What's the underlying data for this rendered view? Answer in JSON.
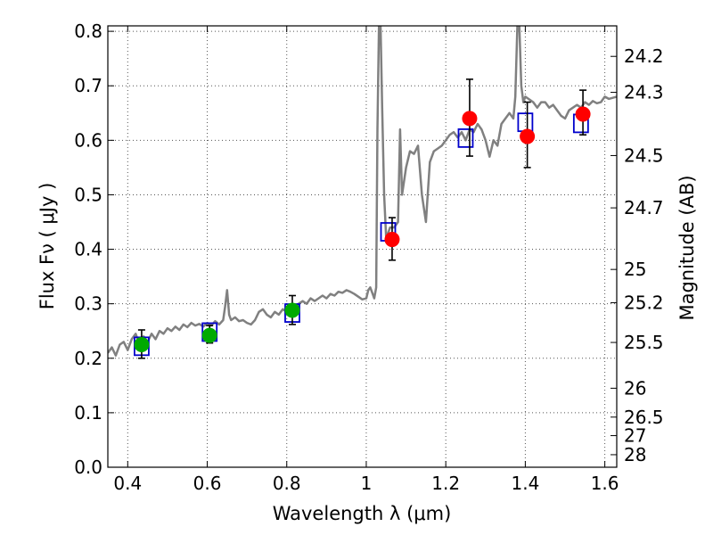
{
  "chart_data": {
    "type": "scatter",
    "xlabel": "Wavelength  λ (μm)",
    "ylabel": "Flux  Fν  ( μJy )",
    "ylabel_right": "Magnitude (AB)",
    "xlim": [
      0.35,
      1.63
    ],
    "ylim": [
      0.0,
      0.81
    ],
    "grid": true,
    "x_ticks": [
      0.4,
      0.6,
      0.8,
      1.0,
      1.2,
      1.4,
      1.6
    ],
    "x_tick_labels": [
      "0.4",
      "0.6",
      "0.8",
      "1",
      "1.2",
      "1.4",
      "1.6"
    ],
    "y_ticks": [
      0.0,
      0.1,
      0.2,
      0.3,
      0.4,
      0.5,
      0.6,
      0.7,
      0.8
    ],
    "y_tick_labels": [
      "0.0",
      "0.1",
      "0.2",
      "0.3",
      "0.4",
      "0.5",
      "0.6",
      "0.7",
      "0.8"
    ],
    "right_ticks": [
      {
        "flux": 0.754,
        "label": "24.2"
      },
      {
        "flux": 0.688,
        "label": "24.3"
      },
      {
        "flux": 0.572,
        "label": "24.5"
      },
      {
        "flux": 0.476,
        "label": "24.7"
      },
      {
        "flux": 0.363,
        "label": "25"
      },
      {
        "flux": 0.302,
        "label": "25.2"
      },
      {
        "flux": 0.229,
        "label": "25.5"
      },
      {
        "flux": 0.145,
        "label": "26"
      },
      {
        "flux": 0.092,
        "label": "26.5"
      },
      {
        "flux": 0.058,
        "label": "27"
      },
      {
        "flux": 0.023,
        "label": "28"
      }
    ],
    "model_spectrum": {
      "color": "#808080",
      "points": [
        [
          0.35,
          0.21
        ],
        [
          0.36,
          0.22
        ],
        [
          0.37,
          0.205
        ],
        [
          0.38,
          0.225
        ],
        [
          0.39,
          0.23
        ],
        [
          0.4,
          0.215
        ],
        [
          0.41,
          0.235
        ],
        [
          0.42,
          0.245
        ],
        [
          0.43,
          0.225
        ],
        [
          0.44,
          0.24
        ],
        [
          0.45,
          0.23
        ],
        [
          0.46,
          0.245
        ],
        [
          0.47,
          0.235
        ],
        [
          0.48,
          0.25
        ],
        [
          0.49,
          0.245
        ],
        [
          0.5,
          0.255
        ],
        [
          0.51,
          0.25
        ],
        [
          0.52,
          0.258
        ],
        [
          0.53,
          0.252
        ],
        [
          0.54,
          0.262
        ],
        [
          0.55,
          0.257
        ],
        [
          0.56,
          0.265
        ],
        [
          0.57,
          0.26
        ],
        [
          0.58,
          0.263
        ],
        [
          0.59,
          0.258
        ],
        [
          0.6,
          0.265
        ],
        [
          0.61,
          0.26
        ],
        [
          0.62,
          0.268
        ],
        [
          0.63,
          0.262
        ],
        [
          0.64,
          0.27
        ],
        [
          0.645,
          0.295
        ],
        [
          0.65,
          0.325
        ],
        [
          0.655,
          0.28
        ],
        [
          0.66,
          0.27
        ],
        [
          0.67,
          0.275
        ],
        [
          0.68,
          0.268
        ],
        [
          0.69,
          0.27
        ],
        [
          0.7,
          0.265
        ],
        [
          0.71,
          0.262
        ],
        [
          0.72,
          0.27
        ],
        [
          0.73,
          0.285
        ],
        [
          0.74,
          0.29
        ],
        [
          0.75,
          0.28
        ],
        [
          0.76,
          0.275
        ],
        [
          0.77,
          0.285
        ],
        [
          0.78,
          0.28
        ],
        [
          0.79,
          0.29
        ],
        [
          0.8,
          0.285
        ],
        [
          0.81,
          0.295
        ],
        [
          0.82,
          0.29
        ],
        [
          0.83,
          0.3
        ],
        [
          0.84,
          0.305
        ],
        [
          0.85,
          0.3
        ],
        [
          0.86,
          0.31
        ],
        [
          0.87,
          0.305
        ],
        [
          0.88,
          0.31
        ],
        [
          0.89,
          0.315
        ],
        [
          0.9,
          0.31
        ],
        [
          0.91,
          0.318
        ],
        [
          0.92,
          0.315
        ],
        [
          0.93,
          0.322
        ],
        [
          0.94,
          0.32
        ],
        [
          0.95,
          0.325
        ],
        [
          0.96,
          0.322
        ],
        [
          0.97,
          0.318
        ],
        [
          0.98,
          0.313
        ],
        [
          0.99,
          0.308
        ],
        [
          1.0,
          0.31
        ],
        [
          1.005,
          0.325
        ],
        [
          1.01,
          0.33
        ],
        [
          1.015,
          0.32
        ],
        [
          1.02,
          0.31
        ],
        [
          1.025,
          0.33
        ],
        [
          1.028,
          0.62
        ],
        [
          1.032,
          0.81
        ],
        [
          1.036,
          0.81
        ],
        [
          1.04,
          0.66
        ],
        [
          1.045,
          0.5
        ],
        [
          1.05,
          0.42
        ],
        [
          1.06,
          0.44
        ],
        [
          1.07,
          0.44
        ],
        [
          1.08,
          0.45
        ],
        [
          1.085,
          0.62
        ],
        [
          1.09,
          0.5
        ],
        [
          1.1,
          0.55
        ],
        [
          1.11,
          0.58
        ],
        [
          1.12,
          0.575
        ],
        [
          1.13,
          0.59
        ],
        [
          1.14,
          0.5
        ],
        [
          1.15,
          0.45
        ],
        [
          1.16,
          0.56
        ],
        [
          1.17,
          0.58
        ],
        [
          1.18,
          0.585
        ],
        [
          1.19,
          0.59
        ],
        [
          1.2,
          0.6
        ],
        [
          1.21,
          0.61
        ],
        [
          1.22,
          0.615
        ],
        [
          1.23,
          0.605
        ],
        [
          1.24,
          0.615
        ],
        [
          1.25,
          0.6
        ],
        [
          1.26,
          0.62
        ],
        [
          1.27,
          0.615
        ],
        [
          1.28,
          0.63
        ],
        [
          1.29,
          0.62
        ],
        [
          1.3,
          0.6
        ],
        [
          1.31,
          0.57
        ],
        [
          1.32,
          0.6
        ],
        [
          1.33,
          0.59
        ],
        [
          1.34,
          0.63
        ],
        [
          1.35,
          0.64
        ],
        [
          1.36,
          0.65
        ],
        [
          1.37,
          0.64
        ],
        [
          1.375,
          0.68
        ],
        [
          1.38,
          0.81
        ],
        [
          1.385,
          0.81
        ],
        [
          1.39,
          0.7
        ],
        [
          1.395,
          0.67
        ],
        [
          1.4,
          0.68
        ],
        [
          1.41,
          0.675
        ],
        [
          1.42,
          0.67
        ],
        [
          1.43,
          0.66
        ],
        [
          1.44,
          0.67
        ],
        [
          1.45,
          0.67
        ],
        [
          1.46,
          0.66
        ],
        [
          1.47,
          0.665
        ],
        [
          1.48,
          0.655
        ],
        [
          1.49,
          0.645
        ],
        [
          1.5,
          0.64
        ],
        [
          1.51,
          0.655
        ],
        [
          1.52,
          0.66
        ],
        [
          1.53,
          0.665
        ],
        [
          1.54,
          0.66
        ],
        [
          1.55,
          0.67
        ],
        [
          1.56,
          0.665
        ],
        [
          1.57,
          0.672
        ],
        [
          1.58,
          0.668
        ],
        [
          1.59,
          0.67
        ],
        [
          1.6,
          0.68
        ],
        [
          1.61,
          0.676
        ],
        [
          1.62,
          0.678
        ],
        [
          1.63,
          0.68
        ]
      ]
    },
    "model_photometry": {
      "color": "#0000cc",
      "points": [
        {
          "x": 0.435,
          "y": 0.222
        },
        {
          "x": 0.606,
          "y": 0.248
        },
        {
          "x": 0.814,
          "y": 0.283
        },
        {
          "x": 1.055,
          "y": 0.432
        },
        {
          "x": 1.25,
          "y": 0.604
        },
        {
          "x": 1.4,
          "y": 0.633
        },
        {
          "x": 1.54,
          "y": 0.631
        }
      ]
    },
    "observed": [
      {
        "x": 0.435,
        "y": 0.225,
        "err_lo": 0.2,
        "err_hi": 0.252,
        "color": "#00aa00"
      },
      {
        "x": 0.606,
        "y": 0.242,
        "err_lo": 0.228,
        "err_hi": 0.26,
        "color": "#00aa00"
      },
      {
        "x": 0.814,
        "y": 0.288,
        "err_lo": 0.262,
        "err_hi": 0.315,
        "color": "#00aa00"
      },
      {
        "x": 1.065,
        "y": 0.418,
        "err_lo": 0.38,
        "err_hi": 0.458,
        "color": "#ff0000"
      },
      {
        "x": 1.26,
        "y": 0.64,
        "err_lo": 0.571,
        "err_hi": 0.712,
        "color": "#ff0000"
      },
      {
        "x": 1.405,
        "y": 0.607,
        "err_lo": 0.55,
        "err_hi": 0.67,
        "color": "#ff0000"
      },
      {
        "x": 1.545,
        "y": 0.648,
        "err_lo": 0.61,
        "err_hi": 0.692,
        "color": "#ff0000"
      }
    ]
  }
}
